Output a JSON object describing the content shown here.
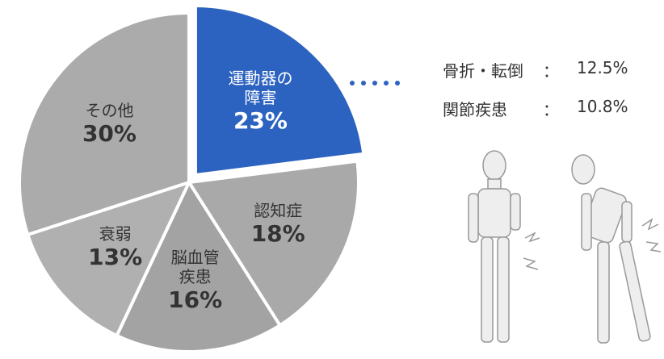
{
  "chart_data": {
    "type": "pie",
    "categories": [
      "運動器の\n障害",
      "認知症",
      "脳血管\n疾患",
      "衰弱",
      "その他"
    ],
    "values": [
      23,
      18,
      16,
      13,
      30
    ],
    "value_labels": [
      "23%",
      "18%",
      "16%",
      "13%",
      "30%"
    ],
    "colors": [
      "#2c63c0",
      "#a9a9a9",
      "#a3a3a3",
      "#b0b0b0",
      "#ababab"
    ],
    "label_colors": [
      "#ffffff",
      "#333333",
      "#333333",
      "#333333",
      "#333333"
    ],
    "exploded": [
      true,
      false,
      false,
      false,
      false
    ],
    "breakdown": {
      "labels": [
        "骨折・転倒",
        "関節疾患"
      ],
      "separator": "：",
      "values": [
        12.5,
        10.8
      ],
      "value_labels": [
        "12.5%",
        "10.8%"
      ]
    }
  }
}
